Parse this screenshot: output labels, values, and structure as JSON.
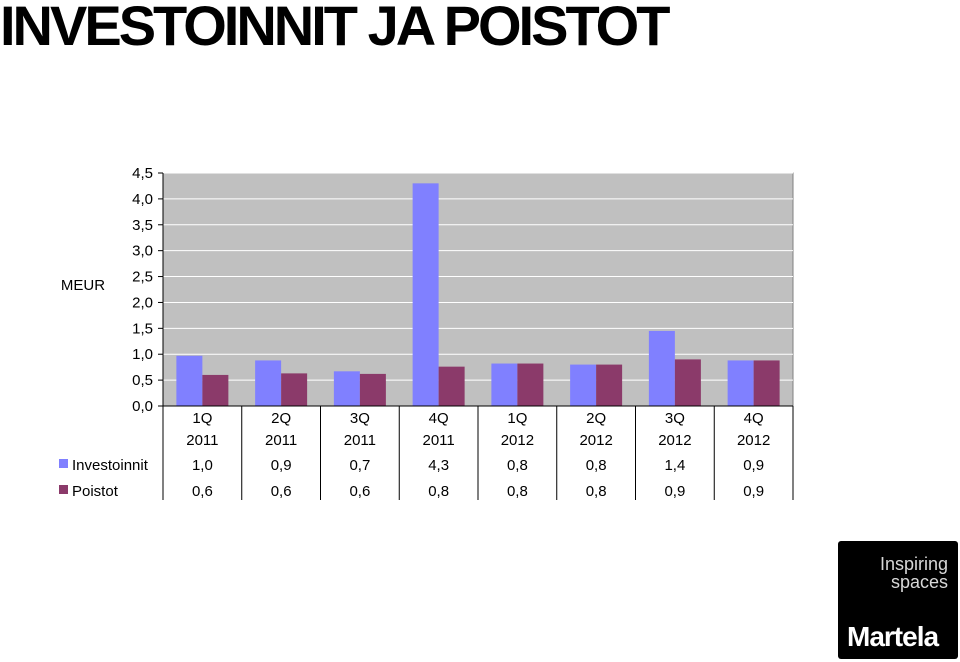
{
  "title": "INVESTOINNIT JA POISTOT",
  "logo": {
    "tagline_line1": "Inspiring",
    "tagline_line2": "spaces",
    "brand": "Martela"
  },
  "chart_data": {
    "type": "bar",
    "ylabel": "MEUR",
    "ylim": [
      0,
      4.5
    ],
    "yticks": [
      "0,0",
      "0,5",
      "1,0",
      "1,5",
      "2,0",
      "2,5",
      "3,0",
      "3,5",
      "4,0",
      "4,5"
    ],
    "grid": true,
    "plot_background": "#c0c0c0",
    "categories": [
      [
        "1Q",
        "2011"
      ],
      [
        "2Q",
        "2011"
      ],
      [
        "3Q",
        "2011"
      ],
      [
        "4Q",
        "2011"
      ],
      [
        "1Q",
        "2012"
      ],
      [
        "2Q",
        "2012"
      ],
      [
        "3Q",
        "2012"
      ],
      [
        "4Q",
        "2012"
      ]
    ],
    "series": [
      {
        "name": "Investoinnit",
        "color": "#8080ff",
        "values": [
          0.97,
          0.88,
          0.67,
          4.3,
          0.82,
          0.8,
          1.45,
          0.88
        ],
        "labels": [
          "1,0",
          "0,9",
          "0,7",
          "4,3",
          "0,8",
          "0,8",
          "1,4",
          "0,9"
        ]
      },
      {
        "name": "Poistot",
        "color": "#8b3a6a",
        "values": [
          0.6,
          0.63,
          0.62,
          0.76,
          0.82,
          0.8,
          0.9,
          0.88
        ],
        "labels": [
          "0,6",
          "0,6",
          "0,6",
          "0,8",
          "0,8",
          "0,8",
          "0,9",
          "0,9"
        ]
      }
    ],
    "data_table": true
  }
}
